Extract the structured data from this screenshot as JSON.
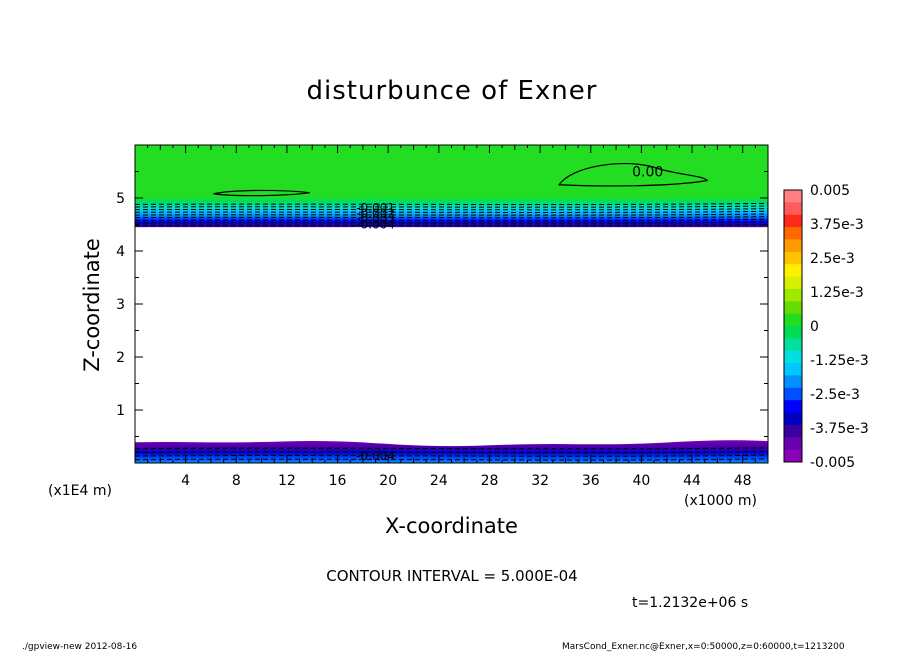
{
  "chart_data": {
    "type": "heatmap",
    "title": "disturbunce of Exner",
    "xlabel": "X-coordinate",
    "ylabel": "Z-coordinate",
    "x_unit_label": "(x1000 m)",
    "y_unit_label": "(x1E4 m)",
    "xlim": [
      0,
      50
    ],
    "ylim": [
      0,
      6
    ],
    "x_ticks": [
      4,
      8,
      12,
      16,
      20,
      24,
      28,
      32,
      36,
      40,
      44,
      48
    ],
    "x_tick_labels": [
      "4",
      "8",
      "12",
      "16",
      "20",
      "24",
      "28",
      "32",
      "36",
      "40",
      "44",
      "48"
    ],
    "y_ticks": [
      1,
      2,
      3,
      4,
      5
    ],
    "y_tick_labels": [
      "1",
      "2",
      "3",
      "4",
      "5"
    ],
    "colorbar": {
      "levels": [
        "0.005",
        "3.75e-3",
        "2.5e-3",
        "1.25e-3",
        "0",
        "-1.25e-3",
        "-2.5e-3",
        "-3.75e-3",
        "-0.005"
      ],
      "colors_top_to_bottom": [
        "#ff8080",
        "#ff5c5c",
        "#ff2a1a",
        "#ff6a00",
        "#ff9a00",
        "#ffc400",
        "#fff000",
        "#d8f000",
        "#a0e800",
        "#66dd00",
        "#22dd22",
        "#00dd55",
        "#00e0a0",
        "#00e0e0",
        "#00c8ff",
        "#0090ff",
        "#0050ff",
        "#0000ff",
        "#0000c0",
        "#3a00a0",
        "#6a00b0",
        "#8a00b8"
      ]
    },
    "bands": [
      {
        "name": "upper",
        "z_min": 4.45,
        "z_max": 6.0,
        "value_range": [
          -0.005,
          0.0
        ]
      },
      {
        "name": "lower",
        "z_min": 0.0,
        "z_max": 0.42,
        "value_range": [
          -0.005,
          -0.003
        ]
      }
    ],
    "contour_labels": [
      {
        "text": "0.00",
        "x": 40.5,
        "z": 5.5
      },
      {
        "text": "-0.001",
        "x": 19.0,
        "z": 4.83
      },
      {
        "text": "-0.002",
        "x": 19.0,
        "z": 4.73
      },
      {
        "text": "-0.003",
        "x": 19.0,
        "z": 4.63
      },
      {
        "text": "-0.004",
        "x": 19.0,
        "z": 4.52
      },
      {
        "text": "-0.004",
        "x": 19.0,
        "z": 0.15
      }
    ],
    "contour_interval": "CONTOUR INTERVAL = 5.000E-04",
    "time": "t=1.2132e+06 s"
  },
  "footer": {
    "left": "./gpview-new   2012-08-16",
    "right": "MarsCond_Exner.nc@Exner,x=0:50000,z=0:60000,t=1213200"
  }
}
